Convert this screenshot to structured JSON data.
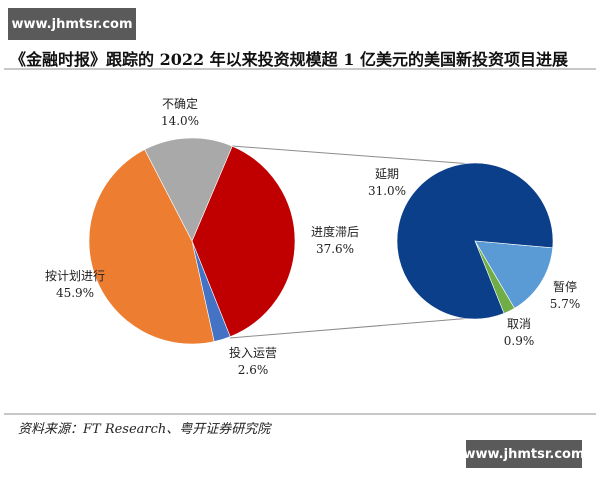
{
  "watermark": {
    "text": "www.jhmtsr.com"
  },
  "title": "《金融时报》跟踪的 2022 年以来投资规模超 1 亿美元的美国新投资项目进展",
  "source": "资料来源：FT Research、粤开证券研究院",
  "colors": {
    "on_track": "#ED7D31",
    "uncertain": "#A9A9A9",
    "behind": "#C00000",
    "operating": "#4472C4",
    "delayed": "#0B3F8A",
    "paused": "#5B9BD5",
    "cancelled": "#70AD47",
    "connector": "#8C8C8C"
  },
  "labels": {
    "uncertain": {
      "name": "不确定",
      "value": "14.0%"
    },
    "on_track": {
      "name": "按计划进行",
      "value": "45.9%"
    },
    "behind": {
      "name": "进度滞后",
      "value": "37.6%"
    },
    "operating": {
      "name": "投入运营",
      "value": "2.6%"
    },
    "delayed": {
      "name": "延期",
      "value": "31.0%"
    },
    "paused": {
      "name": "暂停",
      "value": "5.7%"
    },
    "cancelled": {
      "name": "取消",
      "value": "0.9%"
    }
  },
  "chart_data": {
    "type": "pie",
    "title": "《金融时报》跟踪的 2022 年以来投资规模超 1 亿美元的美国新投资项目进展",
    "subtype": "pie-of-pie",
    "main_pie": {
      "categories": [
        "按计划进行",
        "不确定",
        "进度滞后",
        "投入运营"
      ],
      "values": [
        45.9,
        14.0,
        37.6,
        2.6
      ],
      "unit": "%"
    },
    "secondary_pie": {
      "expands": "进度滞后",
      "categories": [
        "延期",
        "暂停",
        "取消"
      ],
      "values": [
        31.0,
        5.7,
        0.9
      ],
      "unit": "%"
    },
    "legend": "none (data labels on slices)",
    "source": "资料来源：FT Research、粤开证券研究院"
  }
}
